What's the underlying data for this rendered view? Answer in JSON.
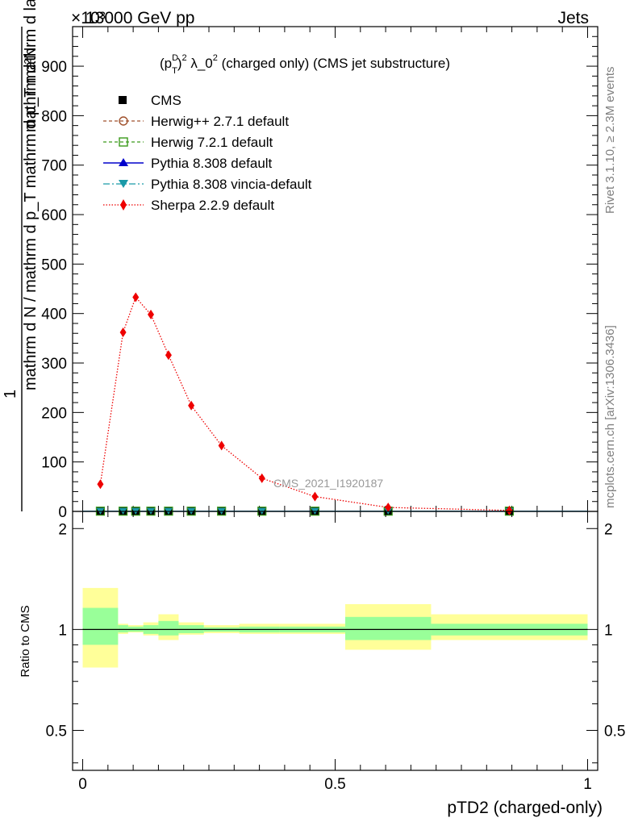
{
  "header": {
    "energy_label": "13000 GeV pp",
    "category_label": "Jets",
    "exponent_label": "×10³",
    "title": "(pTD)² λ_0² (charged only) (CMS jet substructure)",
    "title_parts": {
      "p": "(p",
      "sup_d": "D",
      "sub_t": "T",
      "close": ")",
      "sup_2": "2",
      "rest": " λ_0",
      "sup_2b": "2",
      "tail": " (charged only) (CMS jet substructure)"
    }
  },
  "side_labels": {
    "rivet": "Rivet 3.1.10, ≥ 2.3M events",
    "mcplots": "mcplots.cern.ch [arXiv:1306.3436]"
  },
  "watermark": "CMS_2021_I1920187",
  "y_axis_label": {
    "numerator": "1",
    "denominator": "mathrm d N / mathrm d p_T mathrm d p_T mathrm d lambda",
    "right_part": "mathrm d²N"
  },
  "ratio_axis_label": "Ratio to CMS",
  "x_axis_label": "pTD2 (charged-only)",
  "colors": {
    "data": "#000000",
    "herwigpp": "#a0522d",
    "herwig7": "#3a9a1a",
    "pythia": "#0000cc",
    "vincia": "#1a9aa8",
    "sherpa": "#ee0000",
    "band_inner": "#99ff99",
    "band_outer": "#ffff99"
  },
  "legend": [
    {
      "key": "cms",
      "label": "CMS"
    },
    {
      "key": "herwigpp",
      "label": "Herwig++ 2.7.1 default"
    },
    {
      "key": "herwig7",
      "label": "Herwig 7.2.1 default"
    },
    {
      "key": "pythia",
      "label": "Pythia 8.308 default"
    },
    {
      "key": "vincia",
      "label": "Pythia 8.308 vincia-default"
    },
    {
      "key": "sherpa",
      "label": "Sherpa 2.2.9 default"
    }
  ],
  "chart_data": [
    {
      "type": "line",
      "title": "(pTD)² λ_0² (charged only) (CMS jet substructure)",
      "xlabel": "pTD2 (charged-only)",
      "ylabel": "1 / (mathrm d N / mathrm d p_T mathrm d p_T mathrm d lambda) mathrm d²N",
      "xlim": [
        -0.02,
        1.02
      ],
      "ylim": [
        0,
        980
      ],
      "y_unit_note": "×10³",
      "x_ticks": [
        0,
        0.5,
        1
      ],
      "y_ticks": [
        0,
        100,
        200,
        300,
        400,
        500,
        600,
        700,
        800,
        900
      ],
      "bin_edges": [
        0,
        0.07,
        0.09,
        0.12,
        0.15,
        0.19,
        0.24,
        0.31,
        0.39,
        0.52,
        0.69,
        1.0
      ],
      "series": [
        {
          "name": "CMS",
          "x": [
            0.035,
            0.08,
            0.105,
            0.135,
            0.17,
            0.215,
            0.275,
            0.355,
            0.46,
            0.605,
            0.845
          ],
          "values": [
            0.5,
            0.5,
            0.5,
            0.5,
            0.5,
            0.5,
            0.5,
            0.5,
            0.5,
            0.5,
            0.5
          ]
        },
        {
          "name": "Herwig++ 2.7.1 default",
          "x": [
            0.035,
            0.08,
            0.105,
            0.135,
            0.17,
            0.215,
            0.275,
            0.355,
            0.46,
            0.605,
            0.845
          ],
          "values": [
            0.5,
            0.5,
            0.5,
            0.5,
            0.5,
            0.5,
            0.5,
            0.5,
            0.5,
            0.5,
            0.5
          ]
        },
        {
          "name": "Herwig 7.2.1 default",
          "x": [
            0.035,
            0.08,
            0.105,
            0.135,
            0.17,
            0.215,
            0.275,
            0.355,
            0.46,
            0.605,
            0.845
          ],
          "values": [
            0.5,
            0.5,
            0.5,
            0.5,
            0.5,
            0.5,
            0.5,
            0.5,
            0.5,
            0.5,
            0.5
          ]
        },
        {
          "name": "Pythia 8.308 default",
          "x": [
            0.035,
            0.08,
            0.105,
            0.135,
            0.17,
            0.215,
            0.275,
            0.355,
            0.46,
            0.605,
            0.845
          ],
          "values": [
            0.5,
            0.5,
            0.5,
            0.5,
            0.5,
            0.5,
            0.5,
            0.5,
            0.5,
            0.5,
            0.5
          ]
        },
        {
          "name": "Pythia 8.308 vincia-default",
          "x": [
            0.035,
            0.08,
            0.105,
            0.135,
            0.17,
            0.215,
            0.275,
            0.355,
            0.46,
            0.605,
            0.845
          ],
          "values": [
            0.5,
            0.5,
            0.5,
            0.5,
            0.5,
            0.5,
            0.5,
            0.5,
            0.5,
            0.5,
            0.5
          ]
        },
        {
          "name": "Sherpa 2.2.9 default",
          "x": [
            0.035,
            0.08,
            0.105,
            0.135,
            0.17,
            0.215,
            0.275,
            0.355,
            0.46,
            0.605,
            0.845
          ],
          "values": [
            55,
            362,
            433,
            398,
            316,
            214,
            133,
            67,
            30,
            8,
            2
          ]
        }
      ]
    },
    {
      "type": "area",
      "title": "Ratio to CMS",
      "ylabel": "Ratio to CMS",
      "xlim": [
        -0.02,
        1.02
      ],
      "ylim": [
        0.38,
        2.25
      ],
      "y_scale": "log",
      "y_ticks": [
        0.5,
        1,
        2
      ],
      "reference_line": 1,
      "bins": [
        {
          "lo": 0.0,
          "hi": 0.07,
          "inner": [
            0.9,
            1.16
          ],
          "outer": [
            0.77,
            1.33
          ]
        },
        {
          "lo": 0.07,
          "hi": 0.09,
          "inner": [
            0.98,
            1.03
          ],
          "outer": [
            0.97,
            1.04
          ]
        },
        {
          "lo": 0.09,
          "hi": 0.12,
          "inner": [
            0.985,
            1.02
          ],
          "outer": [
            0.98,
            1.03
          ]
        },
        {
          "lo": 0.12,
          "hi": 0.15,
          "inner": [
            0.97,
            1.03
          ],
          "outer": [
            0.96,
            1.05
          ]
        },
        {
          "lo": 0.15,
          "hi": 0.19,
          "inner": [
            0.96,
            1.06
          ],
          "outer": [
            0.93,
            1.11
          ]
        },
        {
          "lo": 0.19,
          "hi": 0.24,
          "inner": [
            0.975,
            1.03
          ],
          "outer": [
            0.965,
            1.05
          ]
        },
        {
          "lo": 0.24,
          "hi": 0.31,
          "inner": [
            0.985,
            1.015
          ],
          "outer": [
            0.975,
            1.03
          ]
        },
        {
          "lo": 0.31,
          "hi": 0.39,
          "inner": [
            0.98,
            1.02
          ],
          "outer": [
            0.97,
            1.04
          ]
        },
        {
          "lo": 0.39,
          "hi": 0.52,
          "inner": [
            0.98,
            1.02
          ],
          "outer": [
            0.97,
            1.04
          ]
        },
        {
          "lo": 0.52,
          "hi": 0.69,
          "inner": [
            0.93,
            1.09
          ],
          "outer": [
            0.87,
            1.19
          ]
        },
        {
          "lo": 0.69,
          "hi": 1.0,
          "inner": [
            0.96,
            1.04
          ],
          "outer": [
            0.93,
            1.11
          ]
        }
      ]
    }
  ]
}
